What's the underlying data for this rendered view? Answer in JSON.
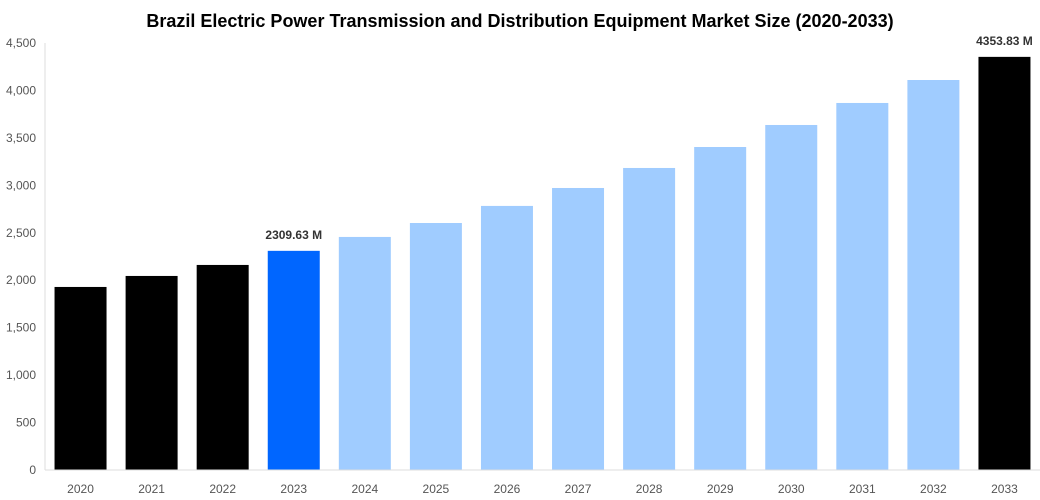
{
  "chart_data": {
    "type": "bar",
    "title": "Brazil Electric Power Transmission and Distribution Equipment Market Size (2020-2033)",
    "xlabel": "",
    "ylabel": "",
    "ylim": [
      0,
      4500
    ],
    "yticks": [
      "0",
      "500",
      "1,000",
      "1,500",
      "2,000",
      "2,500",
      "3,000",
      "3,500",
      "4,000",
      "4,500"
    ],
    "ytick_values": [
      0,
      500,
      1000,
      1500,
      2000,
      2500,
      3000,
      3500,
      4000,
      4500
    ],
    "grid": false,
    "categories": [
      "2020",
      "2021",
      "2022",
      "2023",
      "2024",
      "2025",
      "2026",
      "2027",
      "2028",
      "2029",
      "2030",
      "2031",
      "2032",
      "2033"
    ],
    "values": [
      1929,
      2045,
      2161,
      2309.63,
      2456,
      2603,
      2783,
      2972,
      3183,
      3404,
      3636,
      3868,
      4110,
      4353.83
    ],
    "bar_colors": [
      "#000000",
      "#000000",
      "#000000",
      "#0066ff",
      "#a0ccff",
      "#a0ccff",
      "#a0ccff",
      "#a0ccff",
      "#a0ccff",
      "#a0ccff",
      "#a0ccff",
      "#a0ccff",
      "#a0ccff",
      "#000000"
    ],
    "data_labels": {
      "3": "2309.63 M",
      "13": "4353.83 M"
    }
  }
}
